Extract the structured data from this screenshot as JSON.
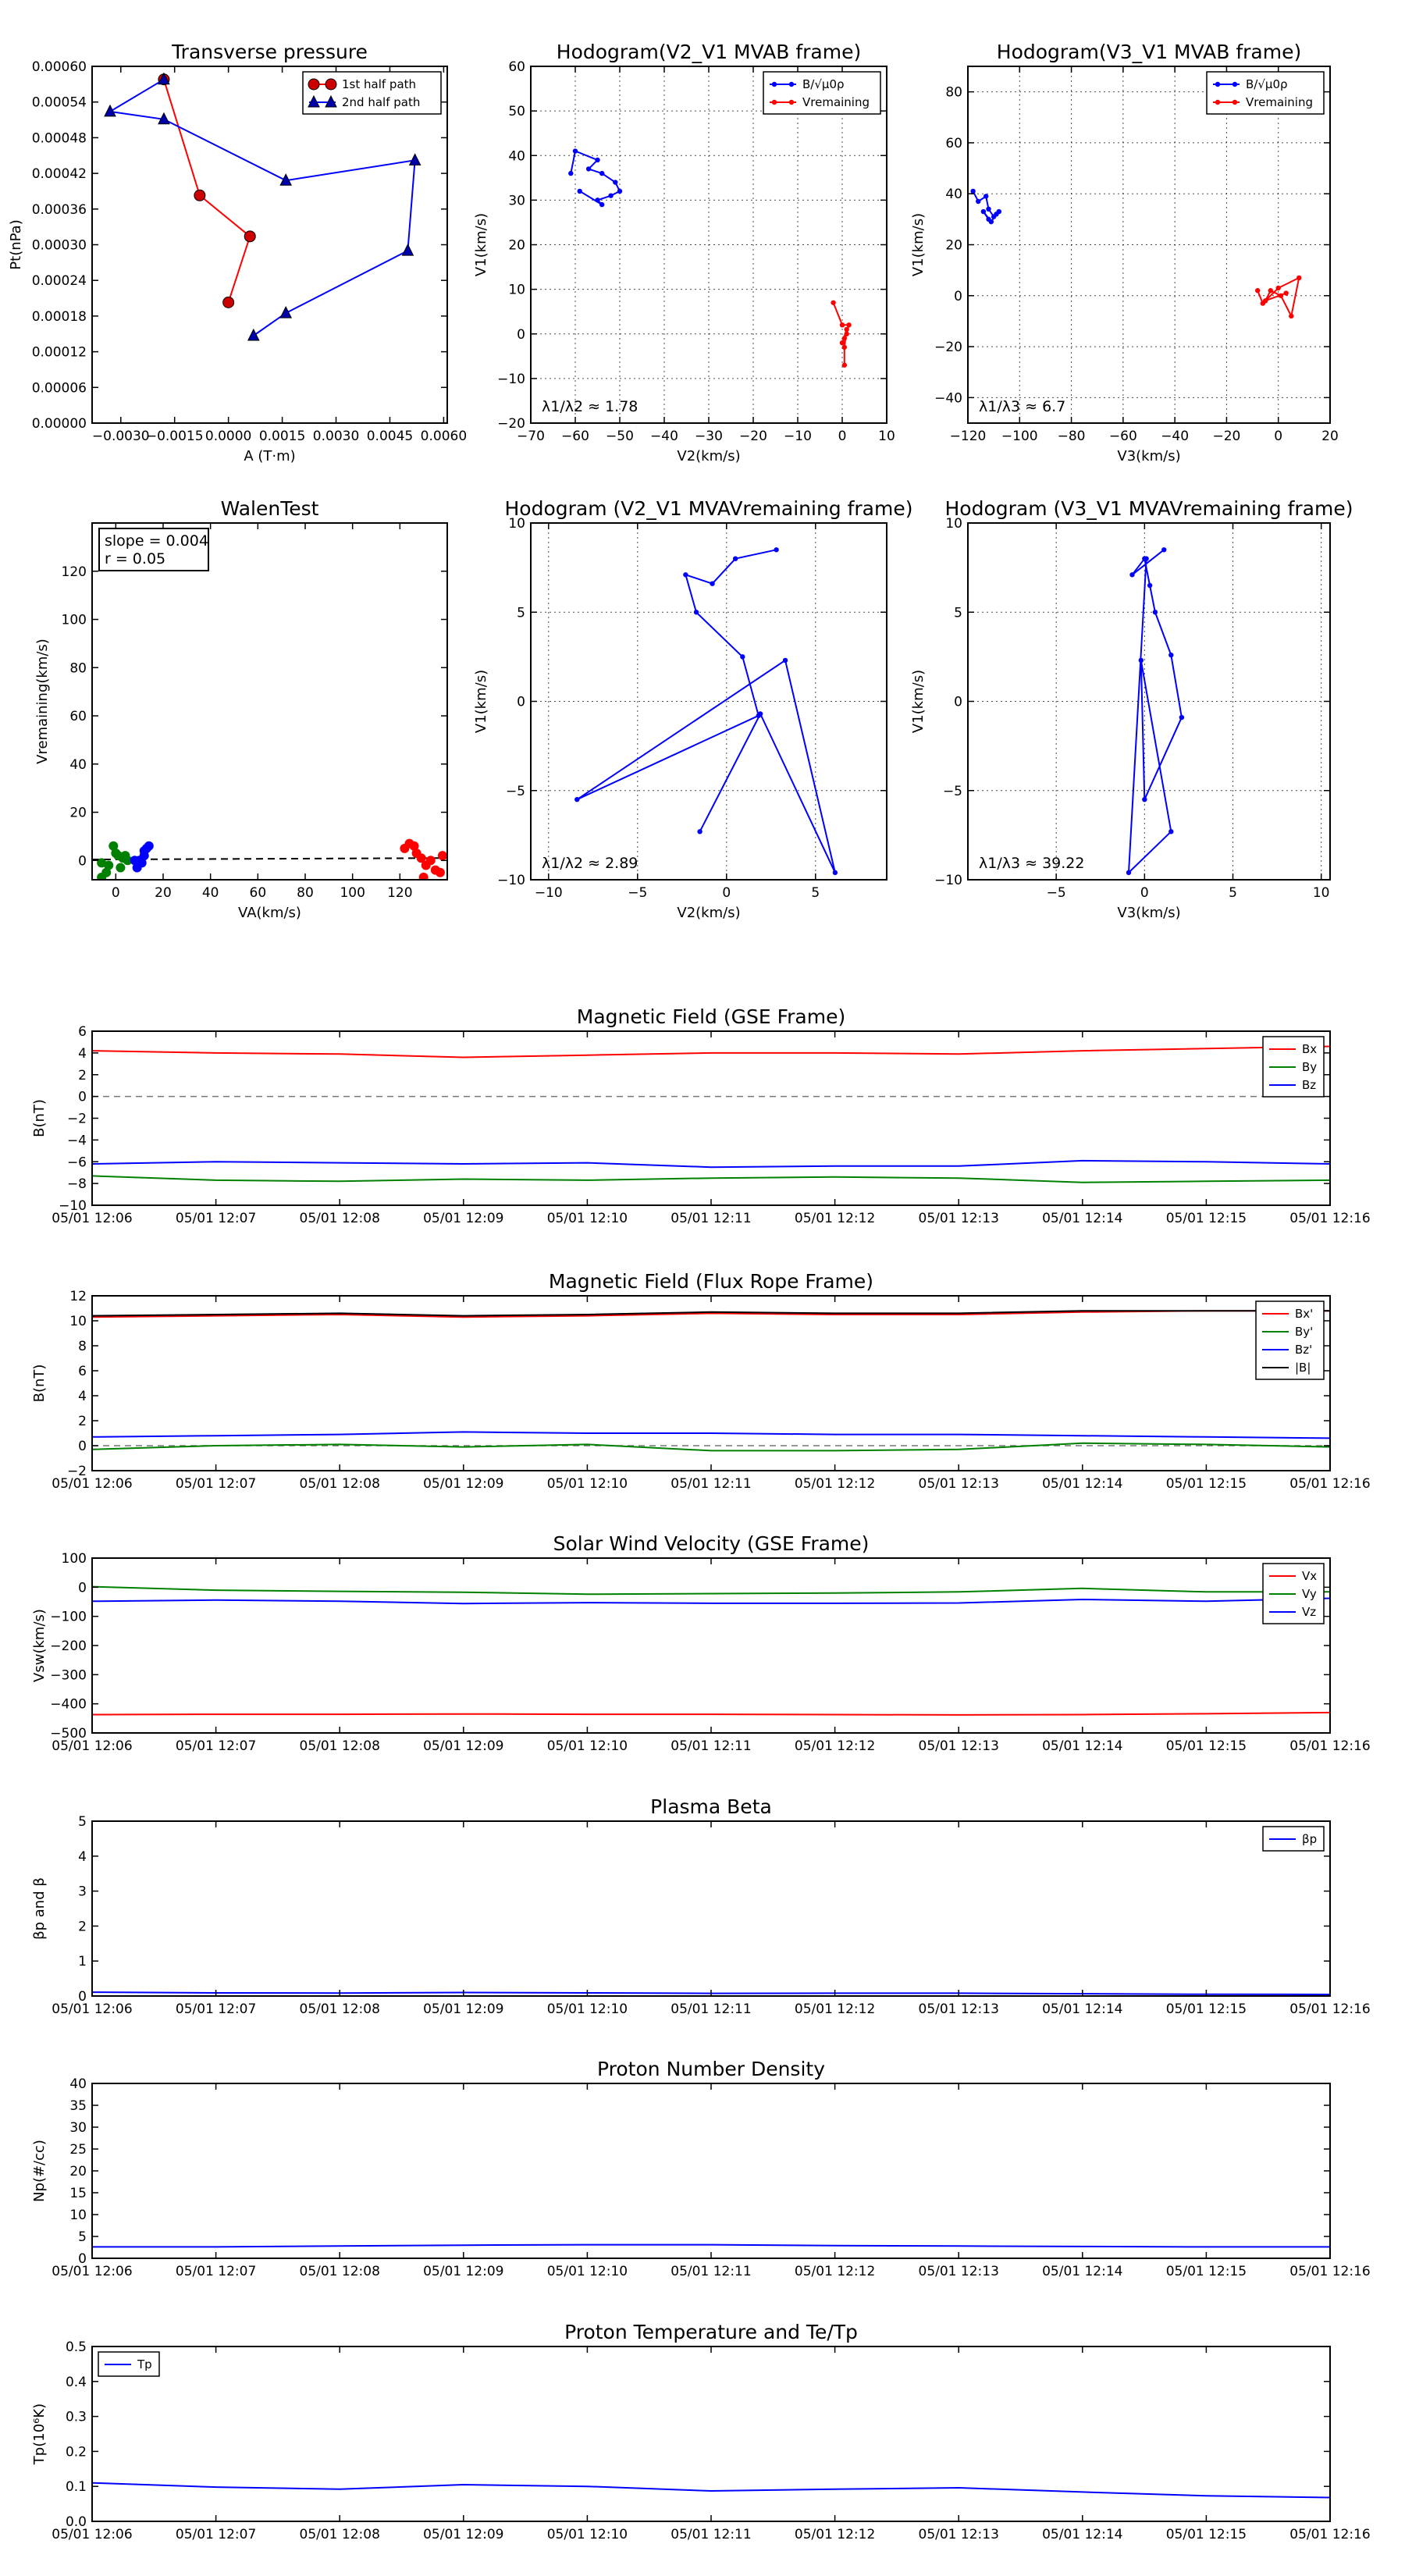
{
  "chart_data": [
    {
      "id": "p1",
      "type": "line",
      "title": "Transverse pressure",
      "xlabel": "A (T·m)",
      "ylabel": "Pt(nPa)",
      "xlim": [
        -0.0038,
        0.0061
      ],
      "ylim": [
        0,
        0.0006
      ],
      "xticks": [
        -0.003,
        -0.0015,
        0,
        0.0015,
        0.003,
        0.0045,
        0.006
      ],
      "xtick_labels": [
        "−0.0030",
        "−0.0015",
        "0.0000",
        "0.0015",
        "0.0030",
        "0.0045",
        "0.0060"
      ],
      "yticks": [
        0,
        6e-05,
        0.00012,
        0.00018,
        0.00024,
        0.0003,
        0.00036,
        0.00042,
        0.00048,
        0.00054,
        0.0006
      ],
      "ytick_labels": [
        "0.00000",
        "0.00006",
        "0.00012",
        "0.00018",
        "0.00024",
        "0.00030",
        "0.00036",
        "0.00042",
        "0.00048",
        "0.00054",
        "0.00060"
      ],
      "grid": false,
      "legend": "top-right",
      "series": [
        {
          "name": "1st half path",
          "color": "#ff0000",
          "marker": "circle",
          "fill": "#cc0000",
          "x": [
            -0.0018,
            -0.0008,
            0.0006,
            0.0
          ],
          "y": [
            0.000578,
            0.000383,
            0.000314,
            0.000203
          ]
        },
        {
          "name": "2nd half path",
          "color": "#0000ff",
          "marker": "triangle",
          "fill": "#0000aa",
          "x": [
            -0.0018,
            -0.0033,
            -0.0018,
            0.0016,
            0.0052,
            0.005,
            0.0016,
            0.0007
          ],
          "y": [
            0.000578,
            0.000524,
            0.000511,
            0.000408,
            0.000442,
            0.00029,
            0.000185,
            0.000147
          ]
        }
      ]
    },
    {
      "id": "p2",
      "type": "line",
      "title": "Hodogram(V2_V1 MVAB frame)",
      "xlabel": "V2(km/s)",
      "ylabel": "V1(km/s)",
      "xlim": [
        -70,
        10
      ],
      "ylim": [
        -20,
        60
      ],
      "xticks": [
        -70,
        -60,
        -50,
        -40,
        -30,
        -20,
        -10,
        0,
        10
      ],
      "yticks": [
        -20,
        -10,
        0,
        10,
        20,
        30,
        40,
        50,
        60
      ],
      "grid": true,
      "legend": "top-right",
      "annotation": "λ1/λ2 ≈ 1.78",
      "series": [
        {
          "name": "B/√μ0ρ",
          "color": "#0000ff",
          "marker": "dot",
          "x": [
            -61,
            -60,
            -55,
            -57,
            -54,
            -51,
            -50,
            -52,
            -55,
            -54,
            -59
          ],
          "y": [
            36,
            41,
            39,
            37,
            36,
            34,
            32,
            31,
            30,
            29,
            32
          ]
        },
        {
          "name": "Vremaining",
          "color": "#ff0000",
          "marker": "dot",
          "x": [
            -2,
            0,
            1.5,
            1,
            0.5,
            0,
            1,
            0.5,
            0.5
          ],
          "y": [
            7,
            2,
            2,
            0,
            -1,
            -2,
            1,
            -3,
            -7
          ]
        }
      ]
    },
    {
      "id": "p3",
      "type": "line",
      "title": "Hodogram(V3_V1 MVAB frame)",
      "xlabel": "V3(km/s)",
      "ylabel": "V1(km/s)",
      "xlim": [
        -120,
        20
      ],
      "ylim": [
        -50,
        90
      ],
      "xticks": [
        -120,
        -100,
        -80,
        -60,
        -40,
        -20,
        0,
        20
      ],
      "yticks": [
        -40,
        -20,
        0,
        20,
        40,
        60,
        80
      ],
      "grid": true,
      "legend": "top-right",
      "annotation": "λ1/λ3 ≈ 6.7",
      "series": [
        {
          "name": "B/√μ0ρ",
          "color": "#0000ff",
          "marker": "dot",
          "x": [
            -118,
            -116,
            -113,
            -112,
            -110,
            -108,
            -109,
            -111,
            -114,
            -112
          ],
          "y": [
            41,
            37,
            39,
            34,
            31,
            33,
            32,
            29,
            33,
            30
          ]
        },
        {
          "name": "Vremaining",
          "color": "#ff0000",
          "marker": "dot",
          "x": [
            -8,
            -6,
            0,
            8,
            5,
            1,
            -3,
            -5,
            3
          ],
          "y": [
            2,
            -3,
            3,
            7,
            -8,
            0,
            2,
            -2,
            1
          ]
        }
      ]
    },
    {
      "id": "p4",
      "type": "scatter",
      "title": "WalenTest",
      "xlabel": "VA(km/s)",
      "ylabel": "Vremaining(km/s)",
      "xlim": [
        -10,
        140
      ],
      "ylim": [
        -8,
        140
      ],
      "xticks": [
        0,
        20,
        40,
        60,
        80,
        100,
        120
      ],
      "yticks": [
        0,
        20,
        40,
        60,
        80,
        100,
        120
      ],
      "grid": false,
      "annotation": [
        "slope = 0.004",
        "r = 0.05"
      ],
      "fit_line": {
        "x": [
          -10,
          140
        ],
        "y": [
          0.4,
          1.0
        ],
        "style": "dashed"
      },
      "series": [
        {
          "name": "",
          "color": "#008000",
          "x": [
            -6,
            -4,
            -1,
            1,
            3,
            5,
            2,
            -3,
            0,
            4,
            -6
          ],
          "y": [
            -1,
            -5,
            6,
            2,
            1,
            0,
            -3,
            -2,
            3,
            2,
            -7
          ]
        },
        {
          "name": "",
          "color": "#0000ff",
          "x": [
            10,
            12,
            13,
            14,
            11,
            9,
            8,
            12
          ],
          "y": [
            0,
            4,
            5,
            6,
            -1,
            -3,
            0,
            2
          ]
        },
        {
          "name": "",
          "color": "#ff0000",
          "x": [
            122,
            124,
            126,
            127,
            129,
            131,
            133,
            135,
            130,
            137,
            138
          ],
          "y": [
            5,
            7,
            6,
            3,
            1,
            -2,
            0,
            -4,
            -7,
            -5,
            2
          ]
        }
      ]
    },
    {
      "id": "p5",
      "type": "line",
      "title": "Hodogram (V2_V1 MVAVremaining frame)",
      "xlabel": "V2(km/s)",
      "ylabel": "V1(km/s)",
      "xlim": [
        -11,
        9
      ],
      "ylim": [
        -10,
        10
      ],
      "xticks": [
        -10,
        -5,
        0,
        5
      ],
      "yticks": [
        -10,
        -5,
        0,
        5,
        10
      ],
      "grid": true,
      "annotation": "λ1/λ2 ≈ 2.89",
      "series": [
        {
          "name": "",
          "color": "#0000ff",
          "marker": "dot",
          "x": [
            2.8,
            0.5,
            -0.8,
            -2.3,
            -1.7,
            0.9,
            1.8,
            -8.4,
            3.3,
            6.1,
            1.9,
            -1.5
          ],
          "y": [
            8.5,
            8.0,
            6.6,
            7.1,
            5.0,
            2.5,
            -0.8,
            -5.5,
            2.3,
            -9.6,
            -0.7,
            -7.3
          ]
        }
      ]
    },
    {
      "id": "p6",
      "type": "line",
      "title": "Hodogram (V3_V1 MVAVremaining frame)",
      "xlabel": "V3(km/s)",
      "ylabel": "V1(km/s)",
      "xlim": [
        -10,
        10.5
      ],
      "ylim": [
        -10,
        10
      ],
      "xticks": [
        -5,
        0,
        5,
        10
      ],
      "yticks": [
        -10,
        -5,
        0,
        5,
        10
      ],
      "grid": true,
      "annotation": "λ1/λ3 ≈ 39.22",
      "series": [
        {
          "name": "",
          "color": "#0000ff",
          "marker": "dot",
          "x": [
            1.1,
            -0.7,
            0,
            0.3,
            0.6,
            1.5,
            2.1,
            0,
            -0.2,
            1.5,
            -0.9,
            0.1
          ],
          "y": [
            8.5,
            7.1,
            8.0,
            6.5,
            5.0,
            2.6,
            -0.9,
            -5.5,
            2.3,
            -7.3,
            -9.6,
            8.0
          ]
        }
      ]
    },
    {
      "id": "t1",
      "type": "line",
      "title": "Magnetic Field (GSE Frame)",
      "ylabel": "B(nT)",
      "ylim": [
        -10,
        6
      ],
      "yticks": [
        -10,
        -8,
        -6,
        -4,
        -2,
        0,
        2,
        4,
        6
      ],
      "x": [
        "05/01 12:06",
        "05/01 12:07",
        "05/01 12:08",
        "05/01 12:09",
        "05/01 12:10",
        "05/01 12:11",
        "05/01 12:12",
        "05/01 12:13",
        "05/01 12:14",
        "05/01 12:15",
        "05/01 12:16"
      ],
      "zero_line": true,
      "legend": "top-right",
      "series": [
        {
          "name": "Bx",
          "color": "#ff0000",
          "values": [
            4.2,
            4.0,
            3.9,
            3.6,
            3.8,
            4.0,
            4.0,
            3.9,
            4.2,
            4.4,
            4.6
          ]
        },
        {
          "name": "By",
          "color": "#008000",
          "values": [
            -7.3,
            -7.7,
            -7.8,
            -7.6,
            -7.7,
            -7.5,
            -7.4,
            -7.5,
            -7.9,
            -7.8,
            -7.7
          ]
        },
        {
          "name": "Bz",
          "color": "#0000ff",
          "values": [
            -6.2,
            -6.0,
            -6.1,
            -6.2,
            -6.1,
            -6.5,
            -6.4,
            -6.4,
            -5.9,
            -6.0,
            -6.2
          ]
        }
      ]
    },
    {
      "id": "t2",
      "type": "line",
      "title": "Magnetic Field (Flux Rope Frame)",
      "ylabel": "B(nT)",
      "ylim": [
        -2,
        12
      ],
      "yticks": [
        -2,
        0,
        2,
        4,
        6,
        8,
        10,
        12
      ],
      "x": [
        "05/01 12:06",
        "05/01 12:07",
        "05/01 12:08",
        "05/01 12:09",
        "05/01 12:10",
        "05/01 12:11",
        "05/01 12:12",
        "05/01 12:13",
        "05/01 12:14",
        "05/01 12:15",
        "05/01 12:16"
      ],
      "zero_line": true,
      "legend": "top-right",
      "series": [
        {
          "name": "Bx'",
          "color": "#ff0000",
          "values": [
            10.3,
            10.4,
            10.5,
            10.3,
            10.4,
            10.6,
            10.5,
            10.5,
            10.7,
            10.8,
            10.8
          ]
        },
        {
          "name": "By'",
          "color": "#008000",
          "values": [
            -0.3,
            0.0,
            0.1,
            -0.1,
            0.1,
            -0.4,
            -0.4,
            -0.3,
            0.2,
            0.1,
            -0.1
          ]
        },
        {
          "name": "Bz'",
          "color": "#0000ff",
          "values": [
            0.7,
            0.8,
            0.9,
            1.1,
            1.0,
            1.0,
            0.9,
            0.9,
            0.8,
            0.7,
            0.6
          ]
        },
        {
          "name": "|B|",
          "color": "#000000",
          "values": [
            10.4,
            10.5,
            10.6,
            10.4,
            10.5,
            10.7,
            10.6,
            10.6,
            10.8,
            10.8,
            10.8
          ]
        }
      ]
    },
    {
      "id": "t3",
      "type": "line",
      "title": "Solar Wind Velocity (GSE Frame)",
      "ylabel": "Vsw(km/s)",
      "ylim": [
        -500,
        100
      ],
      "yticks": [
        -500,
        -400,
        -300,
        -200,
        -100,
        0,
        100
      ],
      "ytick_labels": [
        "−500",
        "−400",
        "−300",
        "−200",
        "−100",
        "0",
        "100"
      ],
      "x": [
        "05/01 12:06",
        "05/01 12:07",
        "05/01 12:08",
        "05/01 12:09",
        "05/01 12:10",
        "05/01 12:11",
        "05/01 12:12",
        "05/01 12:13",
        "05/01 12:14",
        "05/01 12:15",
        "05/01 12:16"
      ],
      "legend": "top-right",
      "series": [
        {
          "name": "Vx",
          "color": "#ff0000",
          "values": [
            -437,
            -436,
            -436,
            -435,
            -436,
            -436,
            -437,
            -438,
            -437,
            -434,
            -430
          ]
        },
        {
          "name": "Vy",
          "color": "#008000",
          "values": [
            2,
            -10,
            -14,
            -17,
            -24,
            -22,
            -20,
            -16,
            -4,
            -16,
            -16
          ]
        },
        {
          "name": "Vz",
          "color": "#0000ff",
          "values": [
            -48,
            -44,
            -48,
            -56,
            -53,
            -55,
            -55,
            -54,
            -42,
            -48,
            -38
          ]
        }
      ]
    },
    {
      "id": "t4",
      "type": "line",
      "title": "Plasma Beta",
      "ylabel": "βp and β",
      "ylim": [
        0,
        5
      ],
      "yticks": [
        0,
        1,
        2,
        3,
        4,
        5
      ],
      "x": [
        "05/01 12:06",
        "05/01 12:07",
        "05/01 12:08",
        "05/01 12:09",
        "05/01 12:10",
        "05/01 12:11",
        "05/01 12:12",
        "05/01 12:13",
        "05/01 12:14",
        "05/01 12:15",
        "05/01 12:16"
      ],
      "legend": "top-right",
      "series": [
        {
          "name": "βp",
          "color": "#0000ff",
          "values": [
            0.11,
            0.09,
            0.085,
            0.1,
            0.09,
            0.075,
            0.08,
            0.08,
            0.065,
            0.05,
            0.045
          ]
        }
      ]
    },
    {
      "id": "t5",
      "type": "line",
      "title": "Proton Number Density",
      "ylabel": "Np(#/cc)",
      "ylim": [
        0,
        40
      ],
      "yticks": [
        0,
        5,
        10,
        15,
        20,
        25,
        30,
        35,
        40
      ],
      "x": [
        "05/01 12:06",
        "05/01 12:07",
        "05/01 12:08",
        "05/01 12:09",
        "05/01 12:10",
        "05/01 12:11",
        "05/01 12:12",
        "05/01 12:13",
        "05/01 12:14",
        "05/01 12:15",
        "05/01 12:16"
      ],
      "series": [
        {
          "name": "",
          "color": "#0000ff",
          "values": [
            2.6,
            2.6,
            2.8,
            3.0,
            3.1,
            3.1,
            2.9,
            2.8,
            2.7,
            2.6,
            2.6
          ]
        }
      ]
    },
    {
      "id": "t6",
      "type": "line",
      "title": "Proton Temperature and Te/Tp",
      "ylabel": "Tp(10⁶K)",
      "ylim": [
        0,
        0.5
      ],
      "yticks": [
        0,
        0.1,
        0.2,
        0.3,
        0.4,
        0.5
      ],
      "ytick_labels": [
        "0.0",
        "0.1",
        "0.2",
        "0.3",
        "0.4",
        "0.5"
      ],
      "x": [
        "05/01 12:06",
        "05/01 12:07",
        "05/01 12:08",
        "05/01 12:09",
        "05/01 12:10",
        "05/01 12:11",
        "05/01 12:12",
        "05/01 12:13",
        "05/01 12:14",
        "05/01 12:15",
        "05/01 12:16"
      ],
      "legend": "top-left",
      "series": [
        {
          "name": "Tp",
          "color": "#0000ff",
          "values": [
            0.11,
            0.098,
            0.092,
            0.105,
            0.1,
            0.087,
            0.092,
            0.096,
            0.084,
            0.073,
            0.068
          ]
        }
      ]
    }
  ]
}
